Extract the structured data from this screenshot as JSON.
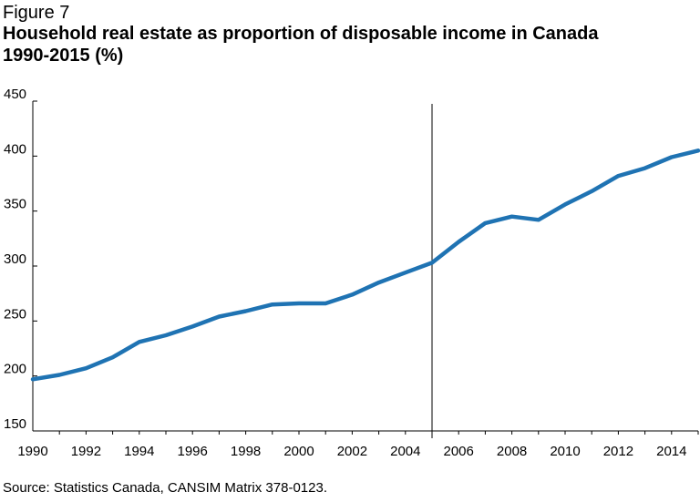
{
  "figure_label": "Figure 7",
  "title_line1": "Household real estate as proportion of disposable income in Canada",
  "title_line2": "1990-2015 (%)",
  "source": "Source: Statistics Canada, CANSIM Matrix 378-0123.",
  "colors": {
    "line": "#1f73b3",
    "axis": "#000000",
    "marker": "#000000"
  },
  "chart_data": {
    "type": "line",
    "title": "Household real estate as proportion of disposable income in Canada 1990-2015 (%)",
    "xlabel": "",
    "ylabel": "",
    "xlim": [
      1990,
      2015
    ],
    "ylim": [
      150,
      450
    ],
    "yticks": [
      150,
      200,
      250,
      300,
      350,
      400,
      450
    ],
    "xticks": [
      1990,
      1992,
      1994,
      1996,
      1998,
      2000,
      2002,
      2004,
      2006,
      2008,
      2010,
      2012,
      2014
    ],
    "grid": false,
    "vertical_marker_x": 2005,
    "series": [
      {
        "name": "",
        "x": [
          1990,
          1991,
          1992,
          1993,
          1994,
          1995,
          1996,
          1997,
          1998,
          1999,
          2000,
          2001,
          2002,
          2003,
          2004,
          2005,
          2006,
          2007,
          2008,
          2009,
          2010,
          2011,
          2012,
          2013,
          2014,
          2015
        ],
        "y": [
          197,
          201,
          207,
          217,
          231,
          237,
          245,
          254,
          259,
          265,
          266,
          266,
          274,
          285,
          294,
          303,
          322,
          339,
          345,
          342,
          356,
          368,
          382,
          389,
          399,
          405
        ]
      }
    ]
  }
}
